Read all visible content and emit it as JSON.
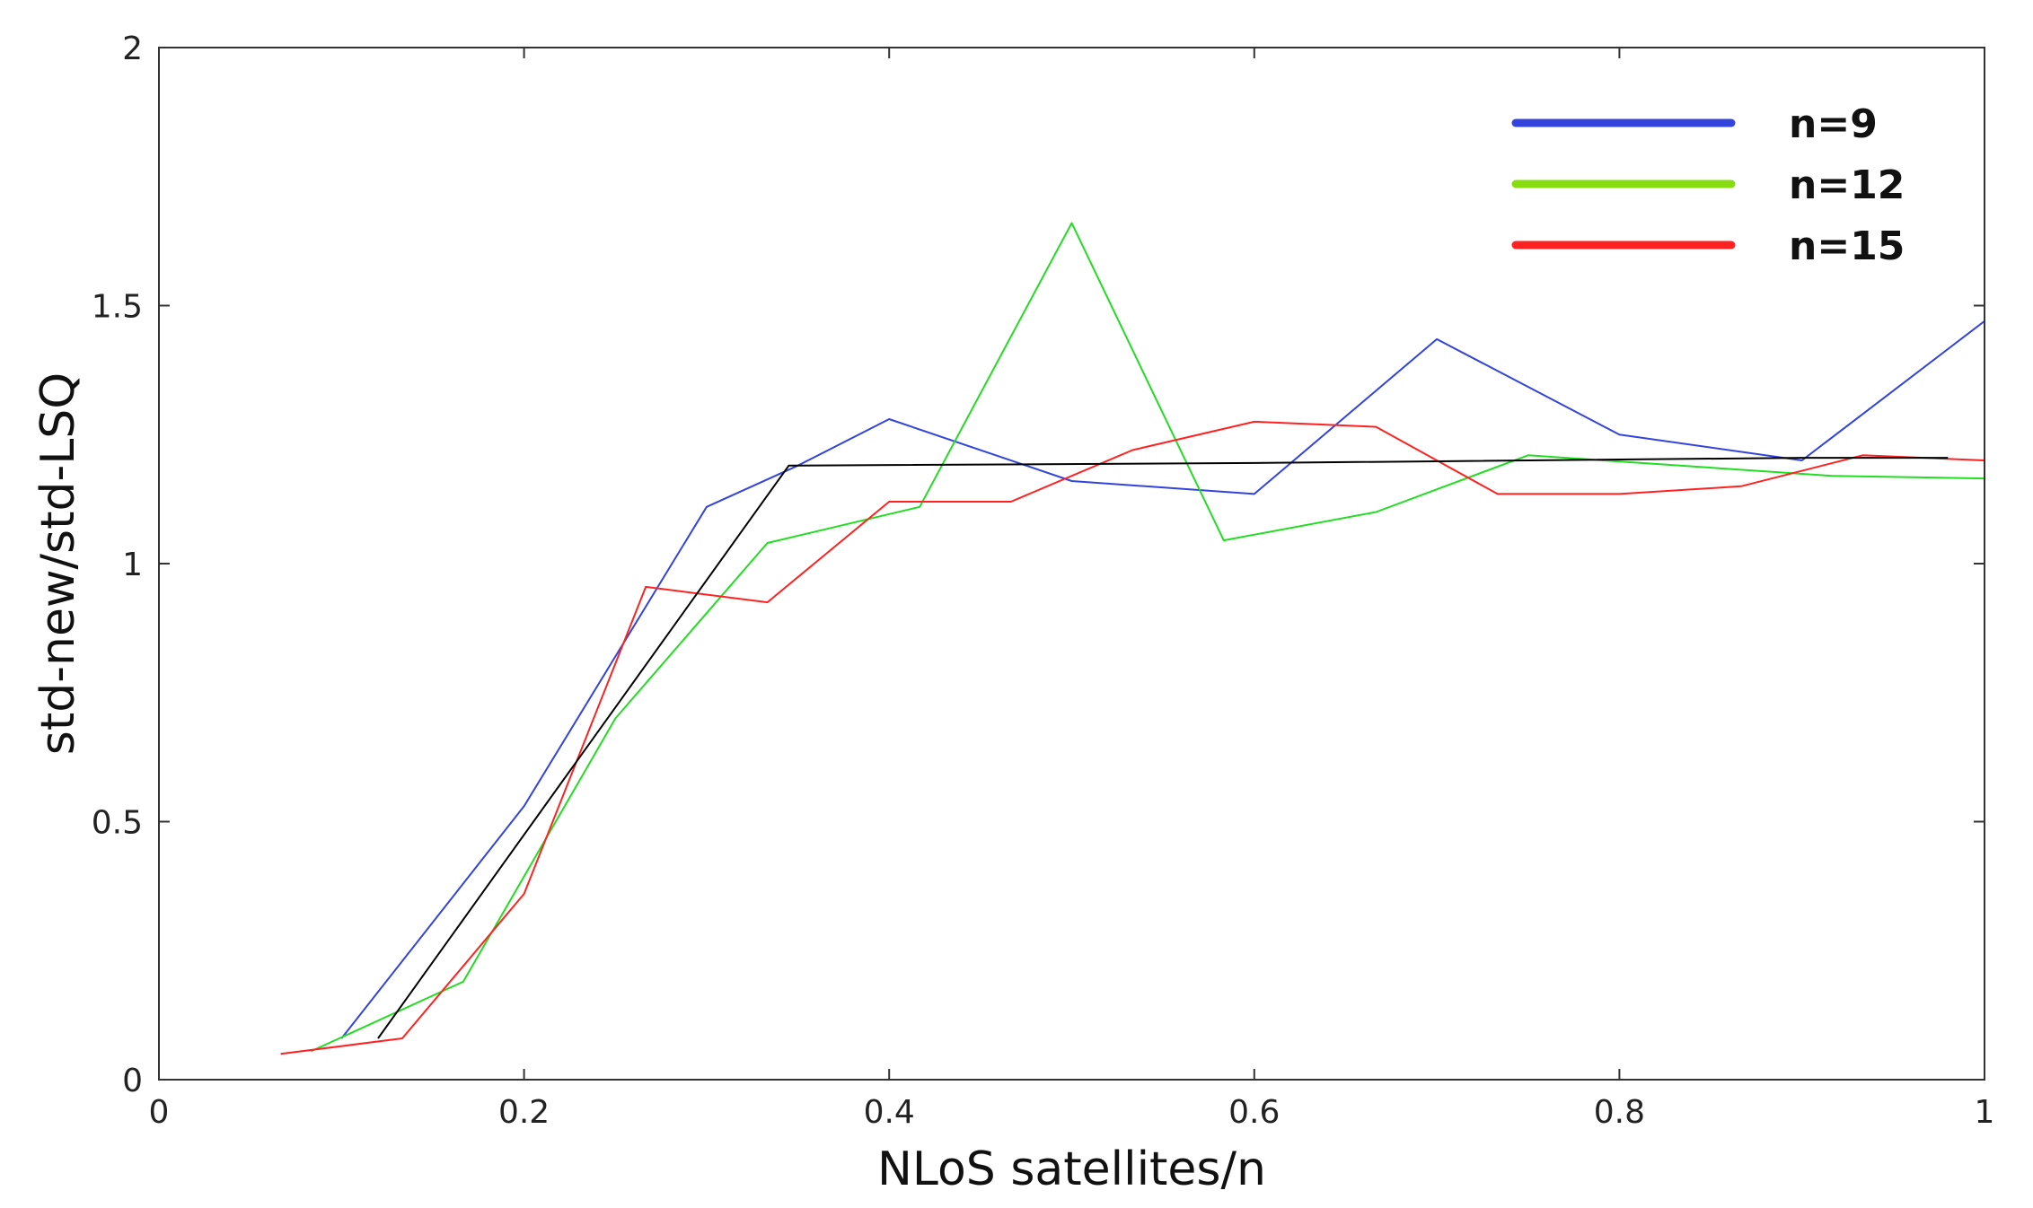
{
  "chart_data": {
    "type": "line",
    "title": "",
    "xlabel": "NLoS satellites/n",
    "ylabel": "std-new/std-LSQ",
    "xlim": [
      0,
      1
    ],
    "ylim": [
      0,
      2
    ],
    "xticks": [
      0,
      0.2,
      0.4,
      0.6,
      0.8,
      1
    ],
    "xtick_labels": [
      "0",
      "0.2",
      "0.4",
      "0.6",
      "0.8",
      "1"
    ],
    "yticks": [
      0,
      0.5,
      1,
      1.5,
      2
    ],
    "ytick_labels": [
      "0",
      "0.5",
      "1",
      "1.5",
      "2"
    ],
    "grid": false,
    "legend_position": "top-right",
    "series": [
      {
        "name": "n=9",
        "color": "#3344dd",
        "x": [
          0.1,
          0.2,
          0.3,
          0.35,
          0.4,
          0.5,
          0.6,
          0.7,
          0.8,
          0.9,
          1.0
        ],
        "y": [
          0.08,
          0.53,
          1.11,
          1.19,
          1.28,
          1.16,
          1.135,
          1.435,
          1.25,
          1.2,
          1.47
        ]
      },
      {
        "name": "n=12",
        "color": "#22dd22",
        "legend_color": "#88dd11",
        "x": [
          0.0833,
          0.1667,
          0.25,
          0.3333,
          0.4167,
          0.5,
          0.5833,
          0.6667,
          0.75,
          0.8333,
          0.9167,
          1.0
        ],
        "y": [
          0.055,
          0.19,
          0.7,
          1.04,
          1.11,
          1.66,
          1.045,
          1.1,
          1.21,
          1.19,
          1.17,
          1.165
        ]
      },
      {
        "name": "n=15",
        "color": "#ff2222",
        "x": [
          0.0667,
          0.1333,
          0.2,
          0.2667,
          0.3333,
          0.4,
          0.4667,
          0.5333,
          0.6,
          0.6667,
          0.7333,
          0.8,
          0.8667,
          0.9333,
          1.0
        ],
        "y": [
          0.05,
          0.08,
          0.36,
          0.955,
          0.925,
          1.12,
          1.12,
          1.22,
          1.275,
          1.265,
          1.135,
          1.135,
          1.15,
          1.21,
          1.2
        ]
      },
      {
        "color": "#000000",
        "x": [
          0.12,
          0.345,
          0.6,
          0.9,
          0.98
        ],
        "y": [
          0.08,
          1.19,
          1.195,
          1.205,
          1.205
        ]
      }
    ]
  }
}
